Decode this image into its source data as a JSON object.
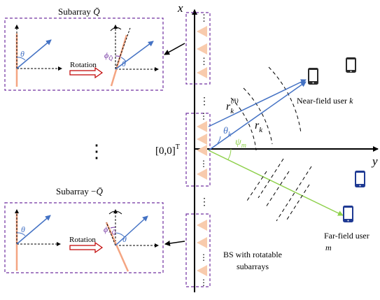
{
  "axes": {
    "x_label": "x",
    "y_label": "y",
    "origin_label": "[0,0]",
    "origin_sup": "T"
  },
  "subarray_top": {
    "title_text": "Subarray ",
    "title_sym": "Q̄",
    "rotation_label": "Rotation",
    "theta": "θ",
    "phi": "ϕ",
    "phi_sub": "Q̄"
  },
  "subarray_bottom": {
    "title_text": "Subarray −",
    "title_sym": "Q̄",
    "rotation_label": "Rotation",
    "theta": "θ",
    "phi": "ϕ",
    "phi_sub": "−Q̄"
  },
  "vertical_dots": "⋮",
  "labels": {
    "r_k_n_base": "r",
    "r_k_n_sub": "k",
    "r_k_n_sup": "(n̄)",
    "r_k_base": "r",
    "r_k_sub": "k",
    "theta_k_base": "θ",
    "theta_k_sub": "k",
    "psi_m_base": "ψ",
    "psi_m_sub": "m",
    "near_user": "Near-field user ",
    "near_user_sym": "k",
    "far_user_line1": "Far-field user",
    "far_user_sym": "m",
    "bs_line1": "BS with rotatable",
    "bs_line2": "subarrays"
  },
  "colors": {
    "blue": "#4472c4",
    "green": "#8ed04b",
    "orange": "#f8cbad",
    "purple": "#7030a0",
    "red": "#c00000",
    "phone_dark": "#2a2a2a",
    "phone_blue": "#1f3a93"
  }
}
